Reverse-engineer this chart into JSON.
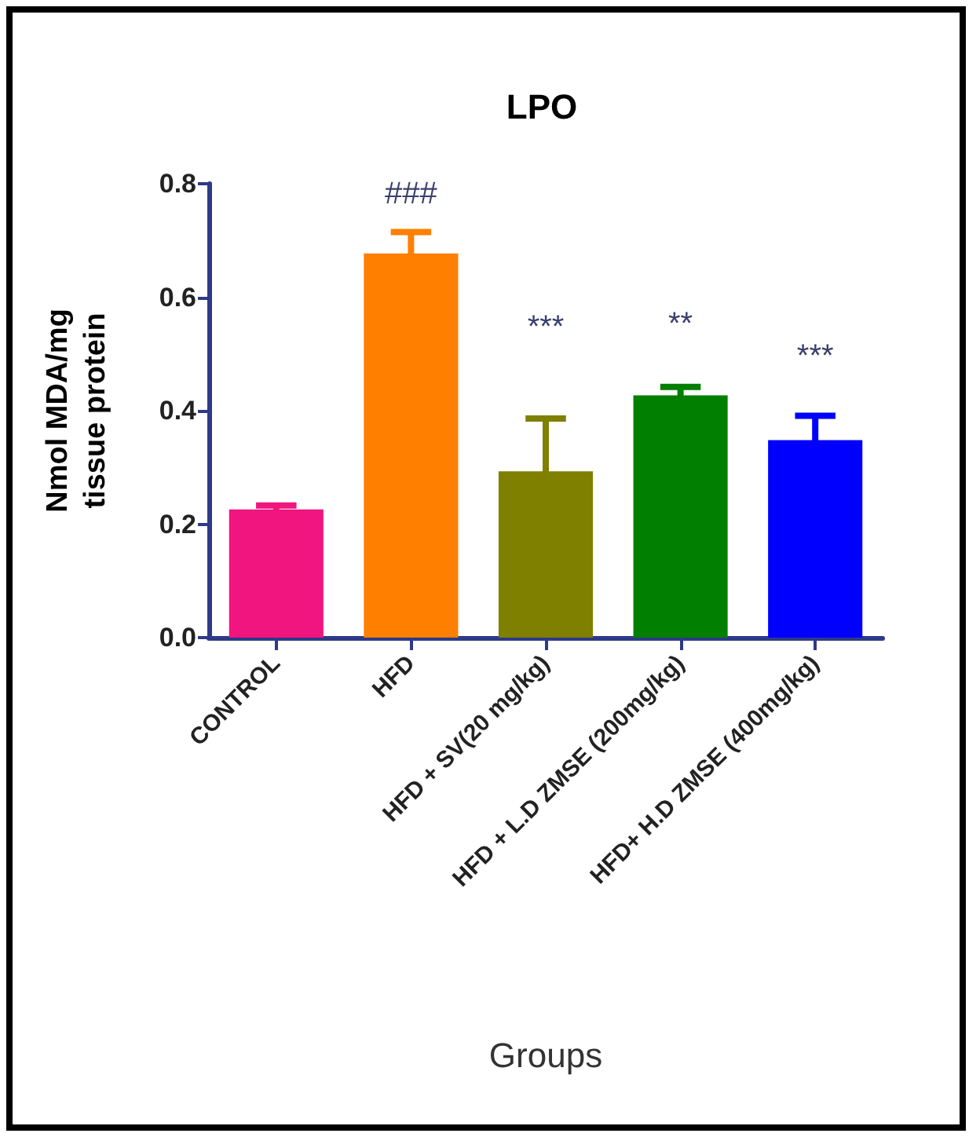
{
  "chart_data": {
    "type": "bar",
    "title": "LPO",
    "xlabel": "Groups",
    "ylabel": "Nmol MDA/mg\ntissue protein",
    "categories": [
      "CONTROL",
      "HFD",
      "HFD + SV(20 mg/kg)",
      "HFD + L.D ZMSE (200mg/kg)",
      "HFD+ H.D ZMSE (400mg/kg)"
    ],
    "values": [
      0.226,
      0.677,
      0.293,
      0.427,
      0.348
    ],
    "colors": [
      "#f0157f",
      "#ff7f00",
      "#7f7f00",
      "#007f00",
      "#0000ff"
    ],
    "errors": [
      0.007,
      0.038,
      0.093,
      0.015,
      0.043
    ],
    "ylim": [
      0,
      0.8
    ],
    "yticks": [
      {
        "value": 0,
        "label": "0.0"
      },
      0.2,
      0.4,
      0.6,
      0.8
    ],
    "grid": false,
    "annotations": [
      "###",
      "***",
      "**",
      "***"
    ]
  }
}
